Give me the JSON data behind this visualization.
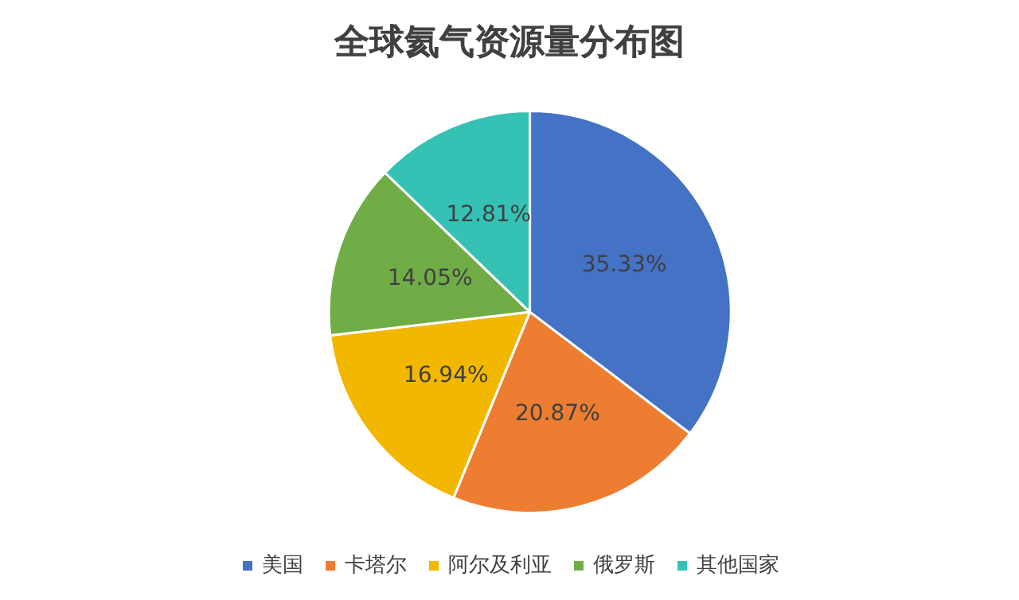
{
  "chart_data": {
    "type": "pie",
    "title": "全球氦气资源量分布图",
    "categories": [
      "美国",
      "卡塔尔",
      "阿尔及利亚",
      "俄罗斯",
      "其他国家"
    ],
    "values": [
      35.33,
      20.87,
      16.94,
      14.05,
      12.81
    ],
    "colors": [
      "#4472c4",
      "#ed7d31",
      "#f2b800",
      "#70ad47",
      "#36c1b5"
    ],
    "value_labels": [
      "35.33%",
      "20.87%",
      "16.94%",
      "14.05%",
      "12.81%"
    ],
    "legend": "bottom"
  }
}
